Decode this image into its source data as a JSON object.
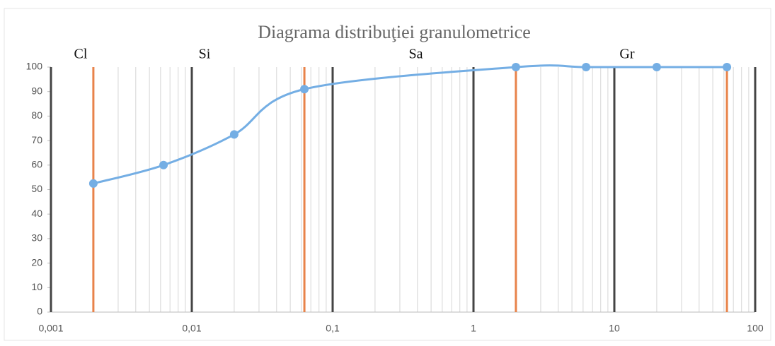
{
  "chart_data": {
    "type": "line",
    "title": "Diagrama distribuţiei granulometrice",
    "xscale": "log",
    "xlim": [
      0.001,
      100
    ],
    "xticks": [
      {
        "value": 0.001,
        "label": "0,001"
      },
      {
        "value": 0.01,
        "label": "0,01"
      },
      {
        "value": 0.1,
        "label": "0,1"
      },
      1,
      10,
      100
    ],
    "ylim": [
      0,
      100
    ],
    "yticks": [
      0,
      10,
      20,
      30,
      40,
      50,
      60,
      70,
      80,
      90,
      100
    ],
    "minor_grid": true,
    "boundaries": [
      0.002,
      0.063,
      2,
      63
    ],
    "boundary_color": "#e8834a",
    "zones": [
      "Cl",
      "Si",
      "Sa",
      "Gr"
    ],
    "series": [
      {
        "color": "#74aee4",
        "smooth": true,
        "x": [
          0.002,
          0.0063,
          0.02,
          0.063,
          2,
          6.3,
          20,
          63
        ],
        "values": [
          52.5,
          60,
          72.5,
          91,
          100,
          100,
          100,
          100
        ]
      }
    ]
  }
}
